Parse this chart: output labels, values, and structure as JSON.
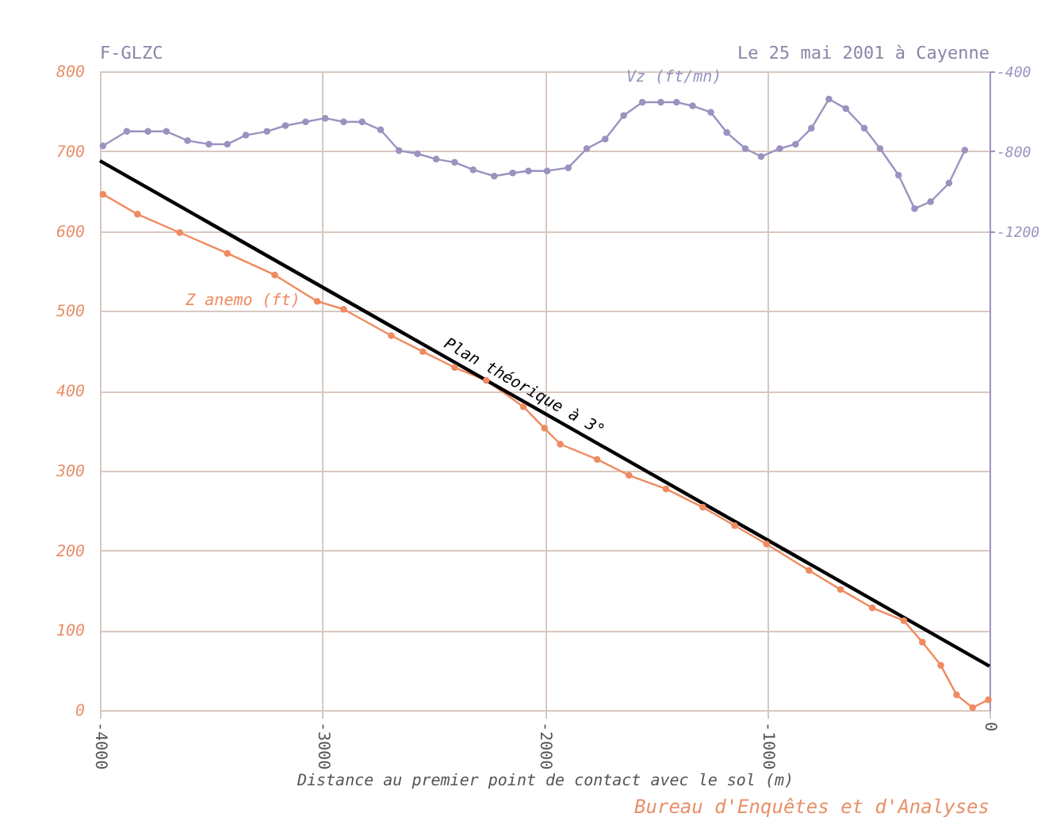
{
  "chart_data": {
    "type": "line",
    "title": "F-GLZC",
    "subtitle": "Le 25 mai 2001 à Cayenne",
    "xlabel": "Distance au premier point de contact avec le sol (m)",
    "annotations": [
      "Bureau d'Enquêtes et d'Analyses"
    ],
    "xlim": [
      -4000,
      0
    ],
    "xticks": [
      -4000,
      -3000,
      -2000,
      -1000,
      0
    ],
    "ylim": [
      0,
      800
    ],
    "yticks": [
      0,
      100,
      200,
      300,
      400,
      500,
      600,
      700,
      800
    ],
    "y2lim": [
      -3600,
      -400
    ],
    "y2ticks": [
      -400,
      -800,
      -1200
    ],
    "grid": true,
    "line_style": "solid",
    "series": [
      {
        "name": "Vz (ft/mn)",
        "color": "#9a93c0",
        "axis": "y2",
        "marker": "circle",
        "x": [
          -3986,
          -3879,
          -3784,
          -3701,
          -3606,
          -3510,
          -3427,
          -3344,
          -3249,
          -3166,
          -3075,
          -2987,
          -2904,
          -2821,
          -2738,
          -2655,
          -2572,
          -2488,
          -2405,
          -2322,
          -2227,
          -2144,
          -2073,
          -1989,
          -1894,
          -1811,
          -1728,
          -1645,
          -1561,
          -1478,
          -1407,
          -1335,
          -1253,
          -1181,
          -1098,
          -1027,
          -943,
          -872,
          -801,
          -722,
          -646,
          -563,
          -492,
          -409,
          -337,
          -265,
          -182,
          -111
        ],
        "values": [
          -773,
          -701,
          -701,
          -701,
          -747,
          -765,
          -765,
          -720,
          -701,
          -672,
          -653,
          -635,
          -653,
          -653,
          -693,
          -797,
          -813,
          -840,
          -856,
          -893,
          -925,
          -909,
          -899,
          -899,
          -883,
          -787,
          -739,
          -621,
          -555,
          -555,
          -555,
          -573,
          -605,
          -707,
          -787,
          -827,
          -787,
          -765,
          -685,
          -539,
          -587,
          -685,
          -787,
          -920,
          -1088,
          -1053,
          -960,
          -795
        ]
      },
      {
        "name": "Z anemo (ft)",
        "color": "#f08a60",
        "marker": "circle",
        "x": [
          -3986,
          -3831,
          -3641,
          -3427,
          -3214,
          -3023,
          -2904,
          -2690,
          -2548,
          -2405,
          -2263,
          -2096,
          -2001,
          -1930,
          -1764,
          -1621,
          -1455,
          -1289,
          -1146,
          -1003,
          -812,
          -670,
          -527,
          -385,
          -302,
          -219,
          -148,
          -76,
          -5
        ],
        "values": [
          646,
          621,
          598,
          572,
          545,
          512,
          502,
          469,
          449,
          429,
          413,
          380,
          353,
          333,
          314,
          294,
          277,
          254,
          231,
          208,
          175,
          151,
          128,
          112,
          85,
          56,
          19,
          3,
          13
        ]
      },
      {
        "name": "Plan théorique à 3°",
        "color": "#000000",
        "marker": "none",
        "x": [
          -4000,
          0
        ],
        "values": [
          688,
          55
        ]
      }
    ]
  }
}
